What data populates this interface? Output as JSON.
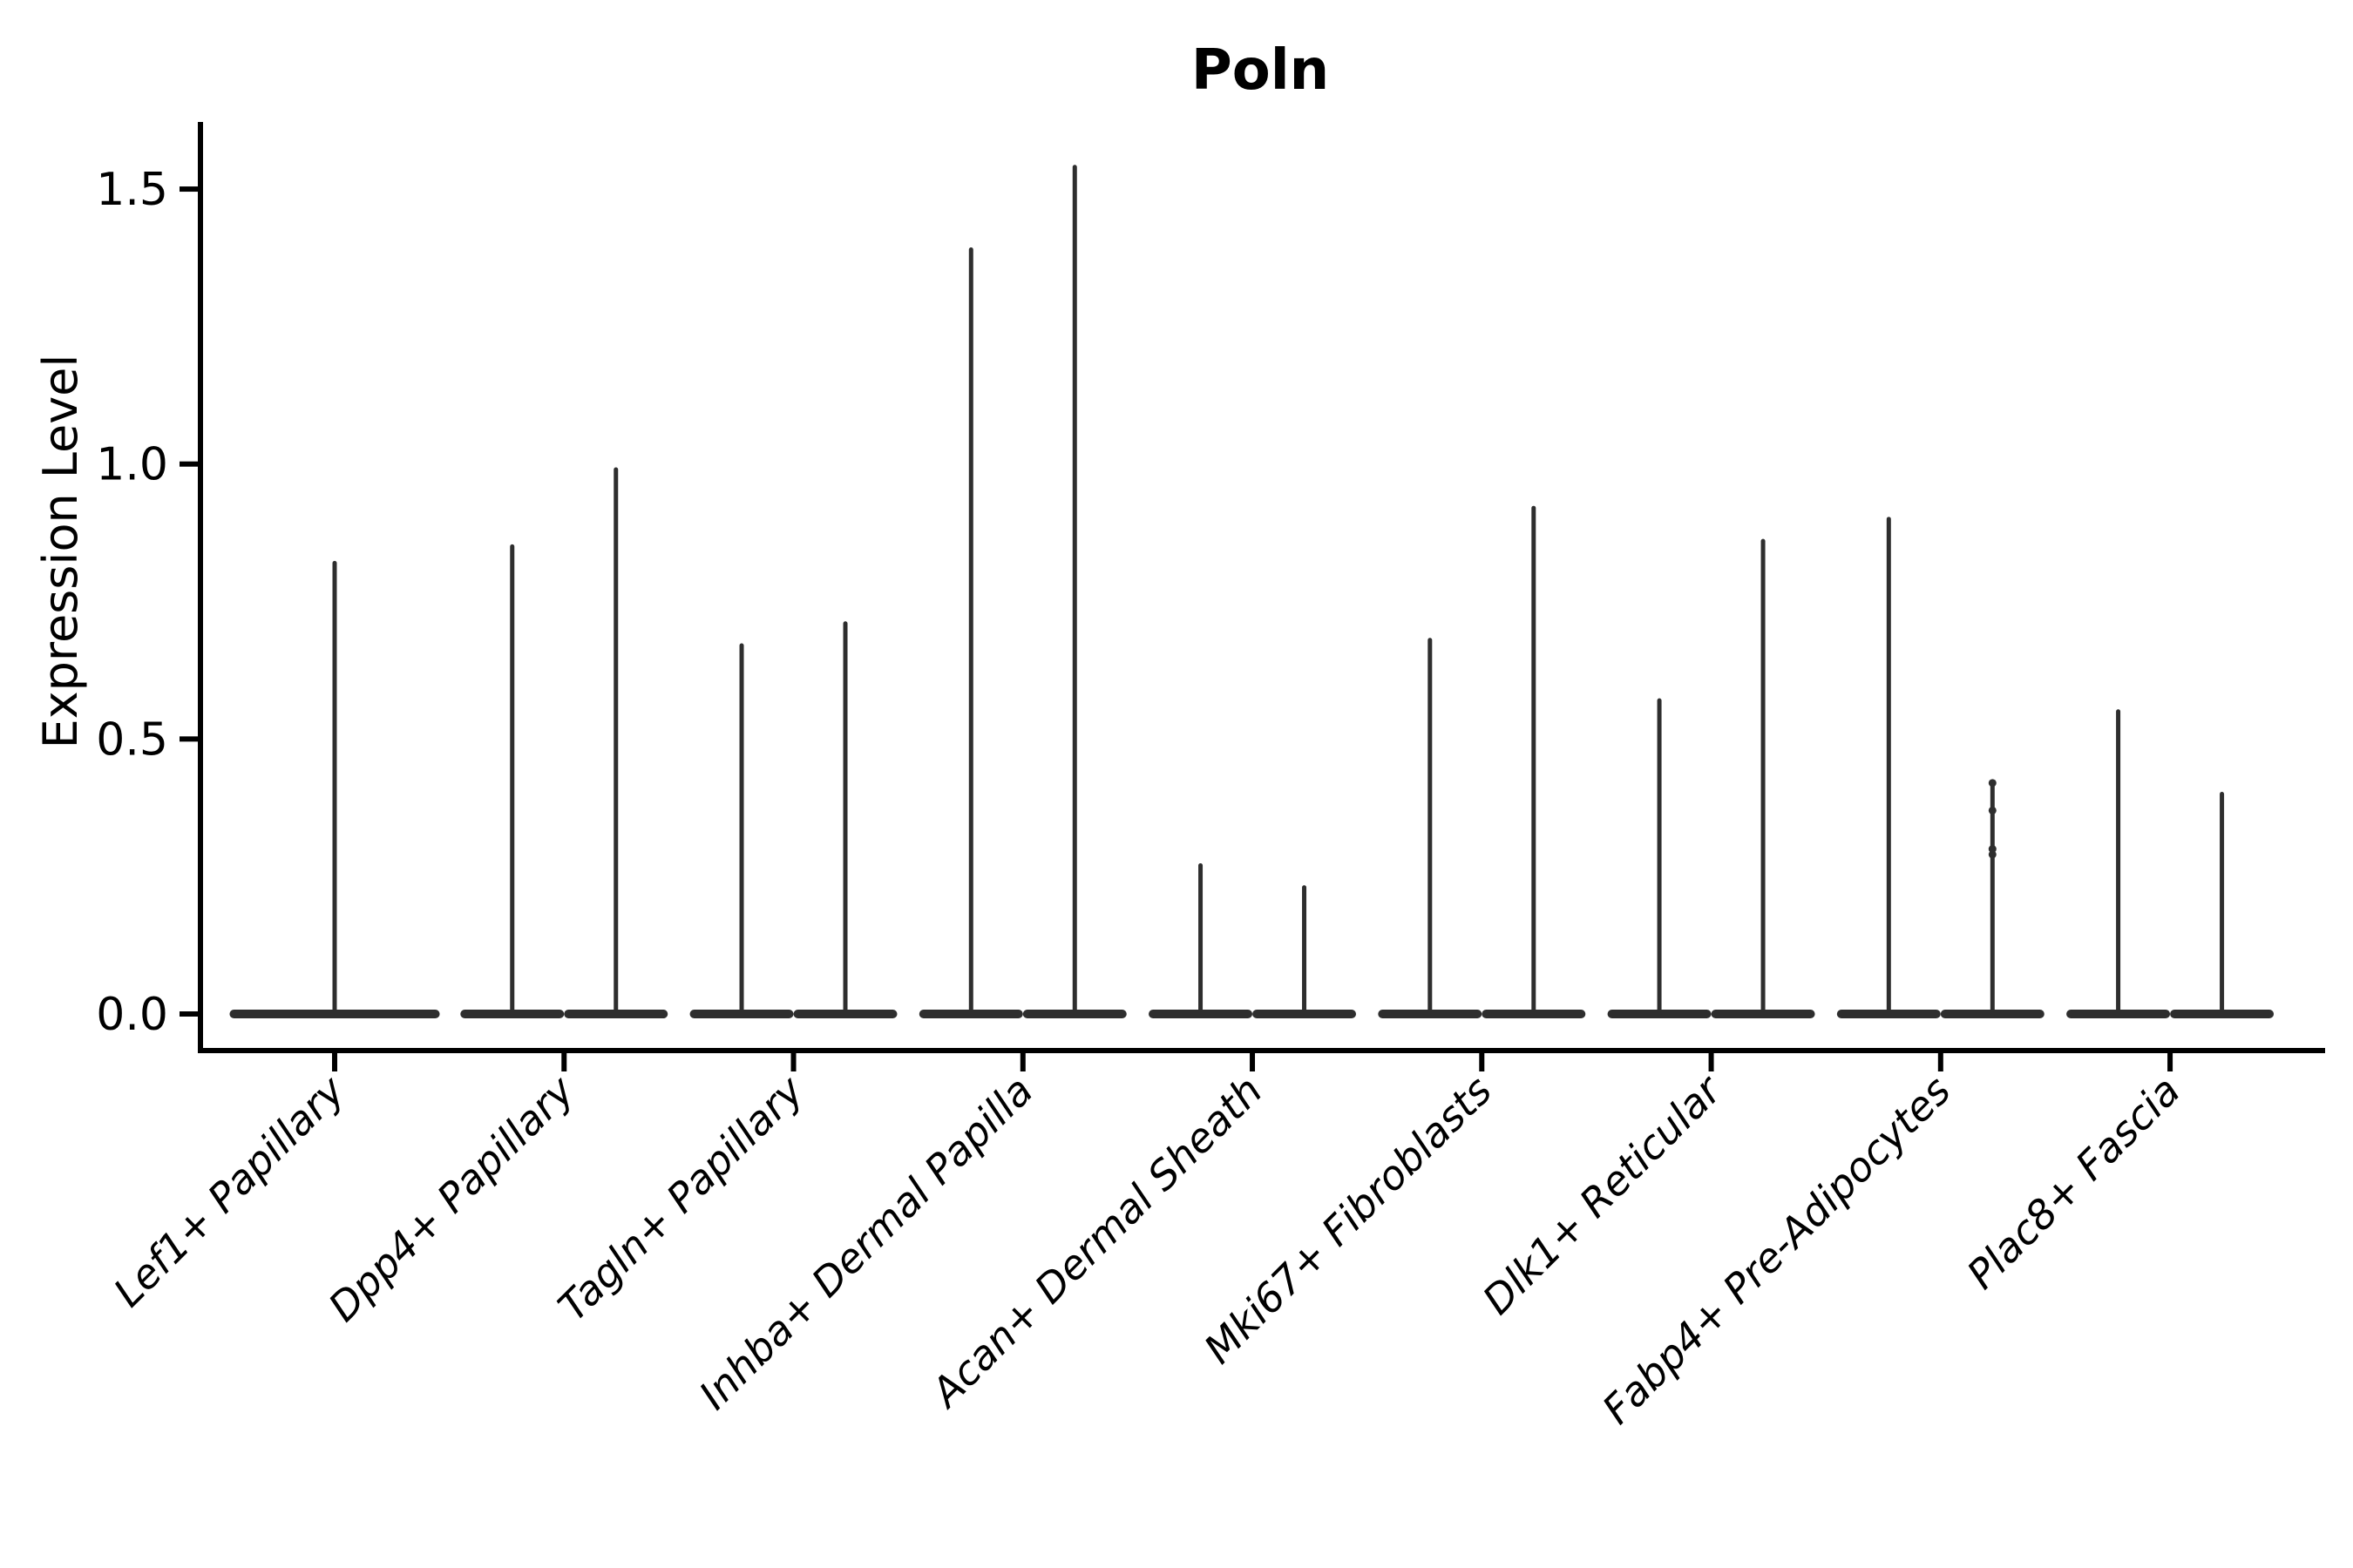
{
  "figure": {
    "background": "#ffffff"
  },
  "chart_data": {
    "type": "violin",
    "title": "Poln",
    "xlabel": "",
    "ylabel": "Expression Level",
    "ylim": [
      -0.07,
      1.62
    ],
    "yticks": [
      {
        "value": 0.0,
        "label": "0.0"
      },
      {
        "value": 0.5,
        "label": "0.5"
      },
      {
        "value": 1.0,
        "label": "1.0"
      },
      {
        "value": 1.5,
        "label": "1.5"
      }
    ],
    "grid": "off",
    "legend": "none",
    "x_tick_rotation": 45,
    "categories": [
      "Lef1+ Papillary",
      "Dpp4+ Papillary",
      "Tagln+ Papillary",
      "Inhba+ Dermal Papilla",
      "Acan+ Dermal Sheath",
      "Mki67+ Fibroblasts",
      "Dlk1+ Reticular",
      "Fabp4+ Pre-Adipocytes",
      "Plac8+ Fascia"
    ],
    "violin_description": "Each violin is a wide flat base at expression 0 with a thin spike up to the maximum expressed value; most categories contain two side-by-side violins.",
    "violins": [
      {
        "category_index": 0,
        "offset": 0.0,
        "half_width": 0.458,
        "baseline": 0.0,
        "max_expression": 0.82
      },
      {
        "category_index": 1,
        "offset": -0.226,
        "half_width": 0.226,
        "baseline": 0.0,
        "max_expression": 0.85
      },
      {
        "category_index": 1,
        "offset": 0.226,
        "half_width": 0.226,
        "baseline": 0.0,
        "max_expression": 0.99
      },
      {
        "category_index": 2,
        "offset": -0.226,
        "half_width": 0.226,
        "baseline": 0.0,
        "max_expression": 0.67
      },
      {
        "category_index": 2,
        "offset": 0.226,
        "half_width": 0.226,
        "baseline": 0.0,
        "max_expression": 0.71
      },
      {
        "category_index": 3,
        "offset": -0.226,
        "half_width": 0.226,
        "baseline": 0.0,
        "max_expression": 1.39
      },
      {
        "category_index": 3,
        "offset": 0.226,
        "half_width": 0.226,
        "baseline": 0.0,
        "max_expression": 1.54
      },
      {
        "category_index": 4,
        "offset": -0.226,
        "half_width": 0.226,
        "baseline": 0.0,
        "max_expression": 0.27
      },
      {
        "category_index": 4,
        "offset": 0.226,
        "half_width": 0.226,
        "baseline": 0.0,
        "max_expression": 0.23
      },
      {
        "category_index": 5,
        "offset": -0.226,
        "half_width": 0.226,
        "baseline": 0.0,
        "max_expression": 0.68
      },
      {
        "category_index": 5,
        "offset": 0.226,
        "half_width": 0.226,
        "baseline": 0.0,
        "max_expression": 0.92
      },
      {
        "category_index": 6,
        "offset": -0.226,
        "half_width": 0.226,
        "baseline": 0.0,
        "max_expression": 0.57
      },
      {
        "category_index": 6,
        "offset": 0.226,
        "half_width": 0.226,
        "baseline": 0.0,
        "max_expression": 0.86
      },
      {
        "category_index": 7,
        "offset": -0.226,
        "half_width": 0.226,
        "baseline": 0.0,
        "max_expression": 0.9
      },
      {
        "category_index": 7,
        "offset": 0.226,
        "half_width": 0.226,
        "baseline": 0.0,
        "max_expression": 0.42
      },
      {
        "category_index": 8,
        "offset": -0.226,
        "half_width": 0.226,
        "baseline": 0.0,
        "max_expression": 0.55
      },
      {
        "category_index": 8,
        "offset": 0.226,
        "half_width": 0.226,
        "baseline": 0.0,
        "max_expression": 0.4
      }
    ],
    "points": [
      {
        "category_index": 7,
        "offset": 0.226,
        "values": [
          0.42,
          0.37,
          0.3,
          0.29
        ]
      }
    ]
  },
  "colors": {
    "violin": "#2e2e2e",
    "axis": "#000000",
    "text": "#000000",
    "background": "#ffffff"
  }
}
